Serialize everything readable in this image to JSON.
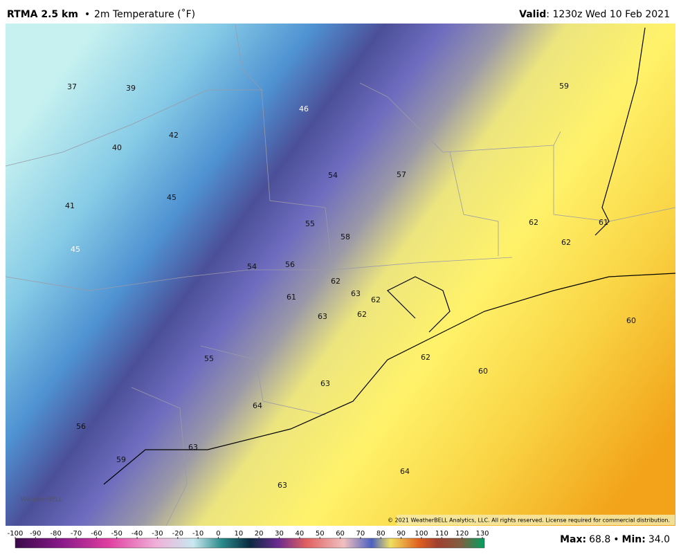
{
  "header": {
    "product": "RTMA 2.5 km",
    "separator": "•",
    "field": "2m Temperature (˚F)",
    "valid_label": "Valid",
    "valid_time": ": 1230z Wed 10 Feb 2021"
  },
  "map": {
    "labels": [
      37,
      39,
      46,
      59,
      42,
      40,
      54,
      57,
      45,
      41,
      55,
      62,
      61,
      58,
      62,
      45,
      54,
      56,
      62,
      63,
      62,
      61,
      63,
      62,
      60,
      55,
      62,
      60,
      63,
      64,
      56,
      63,
      59,
      64,
      63
    ],
    "copyright": "© 2021 WeatherBELL Analytics, LLC. All rights reserved. License required for commercial distribution.",
    "logo": "WeatherBELL"
  },
  "colorbar": {
    "ticks": [
      -100,
      -90,
      -80,
      -70,
      -60,
      -50,
      -40,
      -30,
      -20,
      -10,
      0,
      10,
      20,
      30,
      40,
      50,
      60,
      70,
      80,
      90,
      100,
      110,
      120,
      130
    ]
  },
  "footer": {
    "max_label": "Max:",
    "max": 68.8,
    "separator": "•",
    "min_label": "Min:",
    "min": 34.0
  }
}
